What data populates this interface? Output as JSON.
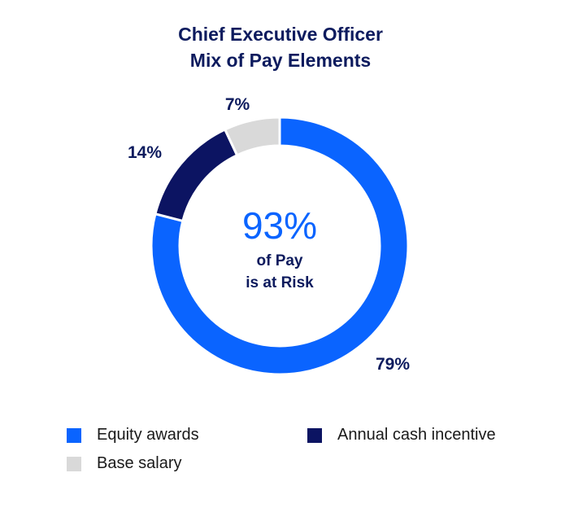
{
  "chart_data": {
    "type": "pie",
    "title_lines": [
      "Chief Executive Officer",
      "Mix of Pay Elements"
    ],
    "slices": [
      {
        "label": "Equity awards",
        "value": 79,
        "display": "79%",
        "color": "#0a64ff"
      },
      {
        "label": "Annual cash incentive",
        "value": 14,
        "display": "14%",
        "color": "#0c1462"
      },
      {
        "label": "Base salary",
        "value": 7,
        "display": "7%",
        "color": "#d9d9d9"
      }
    ],
    "center_value": "93%",
    "center_line1": "of Pay",
    "center_line2": "is at Risk",
    "legend_placement": "bottom"
  }
}
